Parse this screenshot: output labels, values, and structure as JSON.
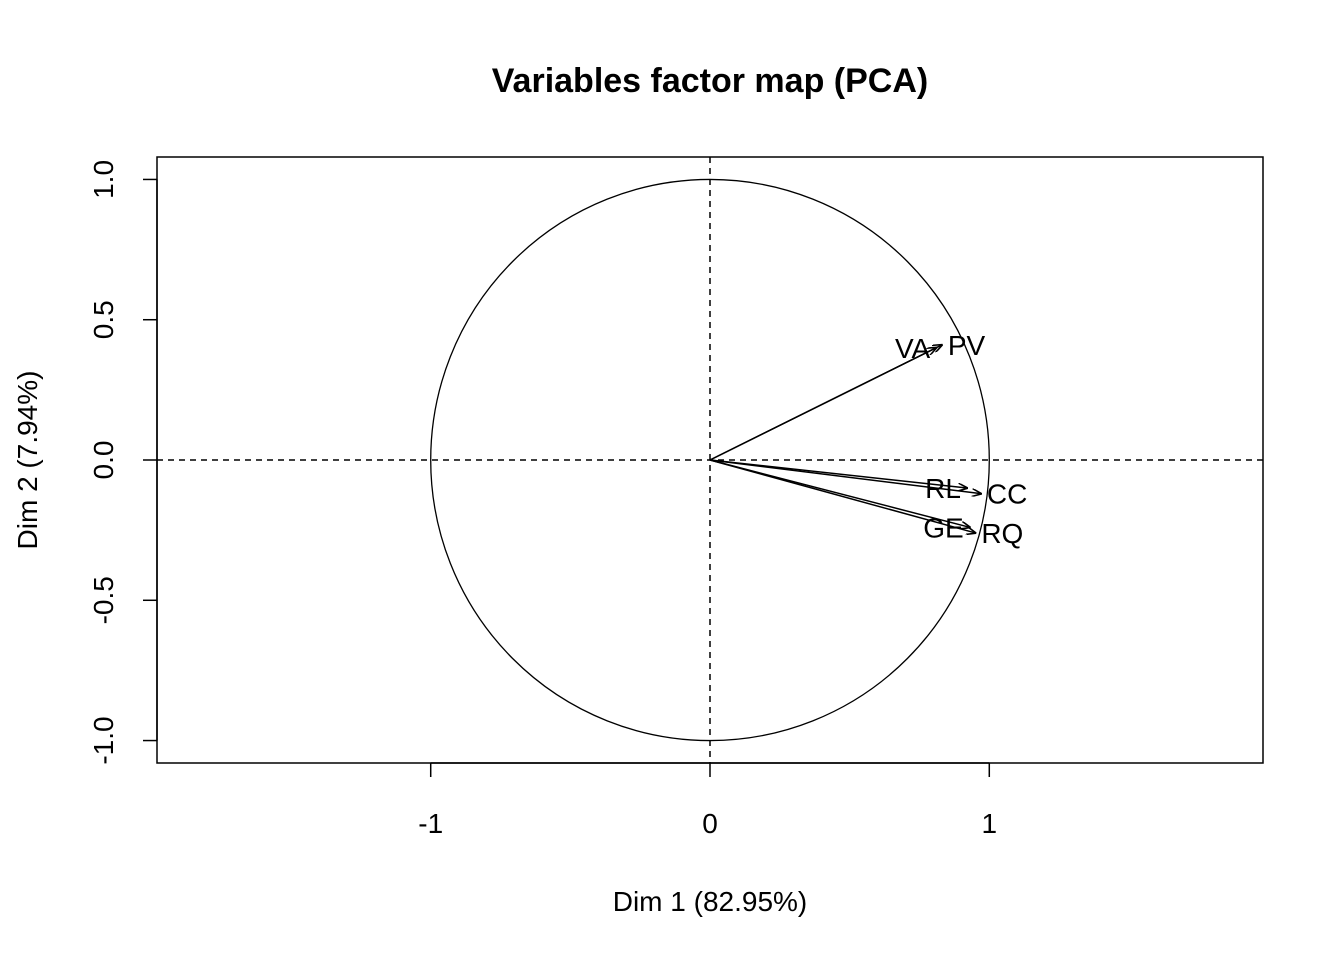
{
  "chart_data": {
    "type": "scatter",
    "subtype": "pca-variables-correlation-circle",
    "title": "Variables factor map (PCA)",
    "xlabel": "Dim 1 (82.95%)",
    "ylabel": "Dim 2 (7.94%)",
    "xlim": [
      -1.98,
      1.98
    ],
    "ylim": [
      -1.08,
      1.08
    ],
    "xticks": [
      -1,
      0,
      1
    ],
    "xtick_labels": [
      "-1",
      "0",
      "1"
    ],
    "yticks": [
      -1.0,
      -0.5,
      0.0,
      0.5,
      1.0
    ],
    "ytick_labels": [
      "-1.0",
      "-0.5",
      "0.0",
      "0.5",
      "1.0"
    ],
    "unit_circle": true,
    "reference_lines": {
      "x0": true,
      "y0": true,
      "style": "dashed"
    },
    "grid": false,
    "legend": "none",
    "variables": [
      {
        "name": "PV",
        "x": 0.83,
        "y": 0.41,
        "label_pos": "right"
      },
      {
        "name": "VA",
        "x": 0.81,
        "y": 0.4,
        "label_pos": "left"
      },
      {
        "name": "RL",
        "x": 0.92,
        "y": -0.1,
        "label_pos": "left"
      },
      {
        "name": "CC",
        "x": 0.97,
        "y": -0.12,
        "label_pos": "right"
      },
      {
        "name": "GE",
        "x": 0.93,
        "y": -0.24,
        "label_pos": "left"
      },
      {
        "name": "RQ",
        "x": 0.95,
        "y": -0.26,
        "label_pos": "right"
      }
    ]
  }
}
